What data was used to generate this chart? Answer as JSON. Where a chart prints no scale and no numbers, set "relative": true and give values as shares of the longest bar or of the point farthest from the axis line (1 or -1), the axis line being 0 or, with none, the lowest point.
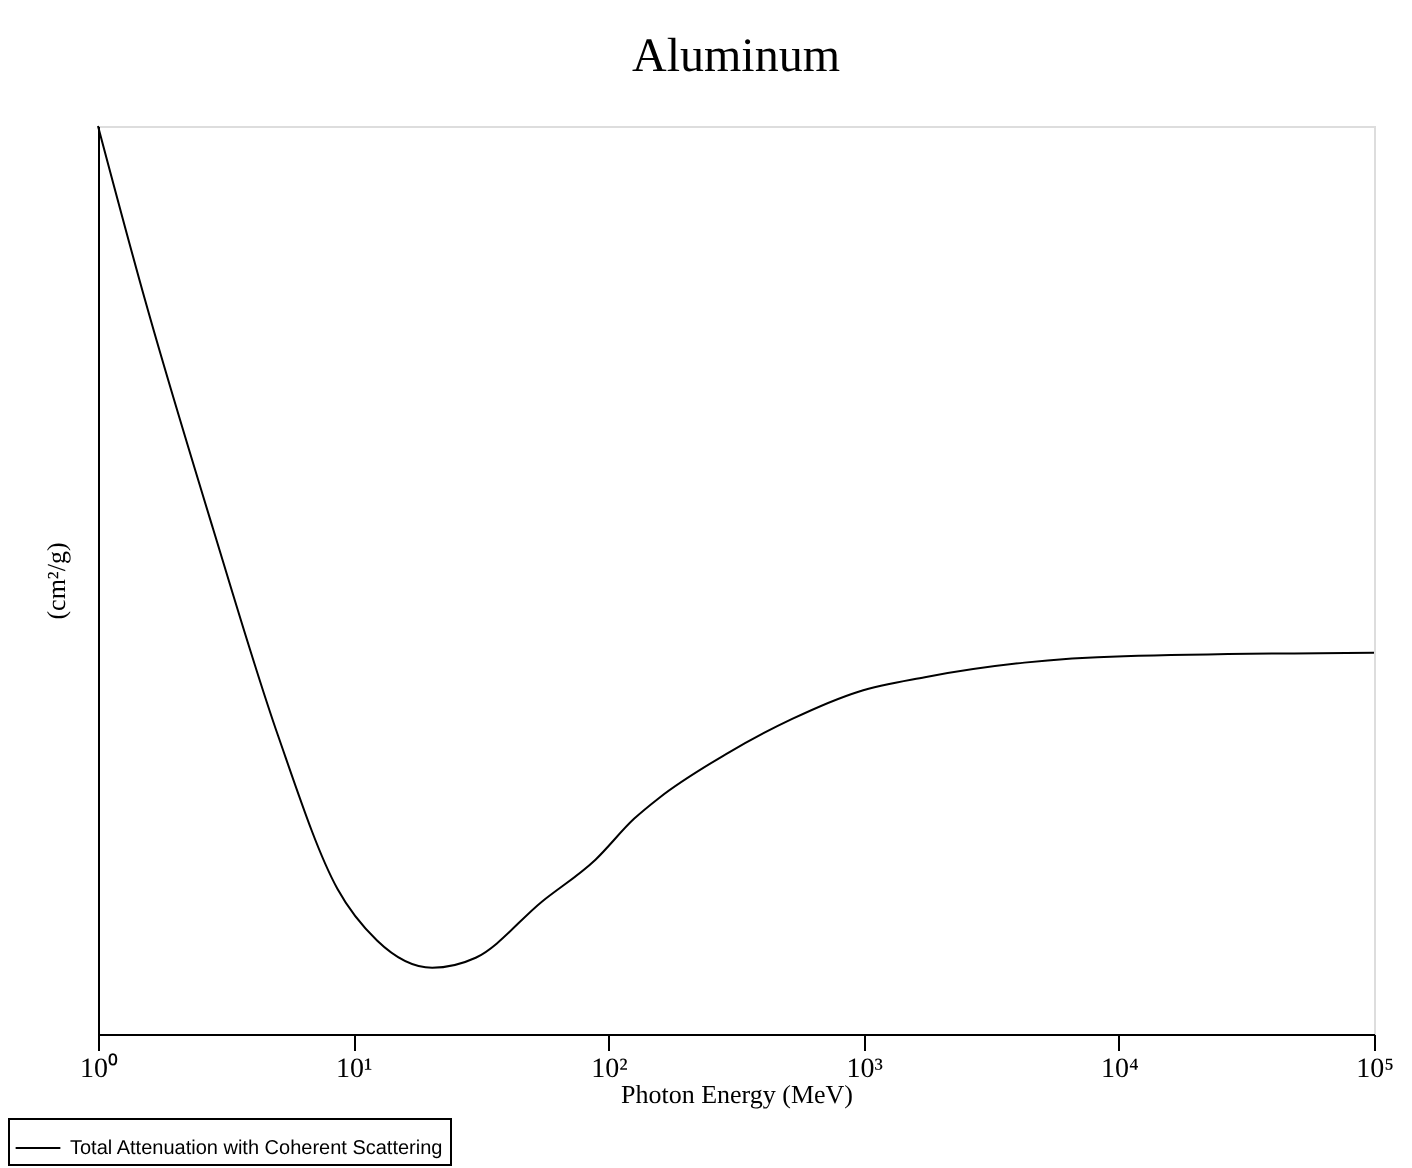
{
  "chart_data": {
    "type": "line",
    "title": "Aluminum",
    "xlabel": "Photon Energy (MeV)",
    "ylabel": "(cm²/g)",
    "relative": true,
    "log": "x",
    "xlim": [
      1,
      100000
    ],
    "xticks": [
      {
        "value": 1,
        "label": "10⁰"
      },
      {
        "value": 10,
        "label": "10¹"
      },
      {
        "value": 100,
        "label": "10²"
      },
      {
        "value": 1000,
        "label": "10³"
      },
      {
        "value": 10000,
        "label": "10⁴"
      },
      {
        "value": 100000,
        "label": "10⁵"
      }
    ],
    "tick_labels": "x",
    "grid": false,
    "legend": "bottom left",
    "line_style": "solid",
    "marker": "none",
    "series": [
      {
        "name": "Total Attenuation with Coherent Scattering",
        "color": "#000000",
        "x": [
          1,
          1.53,
          2.82,
          5.07,
          8.67,
          12.4,
          20.4,
          30.2,
          55,
          89,
          126,
          158,
          288,
          525,
          955,
          1738,
          4266,
          10470,
          100000
        ],
        "values": [
          1.0,
          0.808,
          0.557,
          0.329,
          0.16,
          0.103,
          0.073,
          0.084,
          0.146,
          0.192,
          0.237,
          0.26,
          0.308,
          0.347,
          0.377,
          0.393,
          0.409,
          0.416,
          0.42
        ]
      }
    ]
  }
}
